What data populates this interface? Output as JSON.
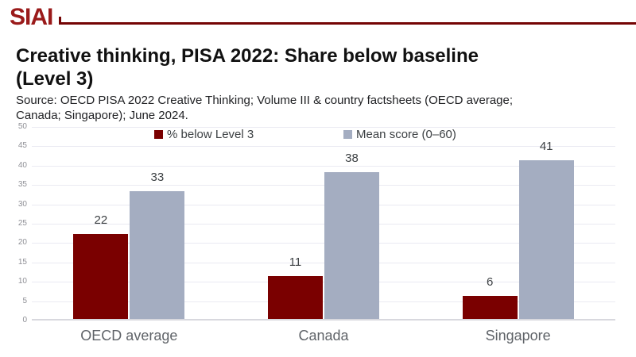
{
  "brand": {
    "logo_text": "SIAI",
    "logo_color": "#9A1A1A",
    "rule_color": "#740404"
  },
  "header": {
    "title_lines": [
      "Creative thinking, PISA 2022: Share below baseline",
      "(Level 3)"
    ],
    "source_lines": [
      "Source: OECD PISA 2022 Creative Thinking; Volume III & country factsheets (OECD average;",
      "Canada; Singapore); June 2024."
    ]
  },
  "chart_data": {
    "type": "bar",
    "categories": [
      "OECD average",
      "Canada",
      "Singapore"
    ],
    "series": [
      {
        "name": "% below Level 3",
        "color": "#7A0000",
        "values": [
          22,
          11,
          6
        ]
      },
      {
        "name": "Mean score (0–60)",
        "color": "#A4ADC1",
        "values": [
          33,
          38,
          41
        ]
      }
    ],
    "ylim": [
      0,
      50
    ],
    "ytick_step": 5,
    "grid": true,
    "legend_position": "top",
    "value_labels": true,
    "colors": {
      "gridline": "#EAEAF2",
      "axis_line": "#D8D8DE",
      "tick_label": "#8F9096",
      "category_label": "#5F6368",
      "value_label": "#3C4043"
    }
  }
}
